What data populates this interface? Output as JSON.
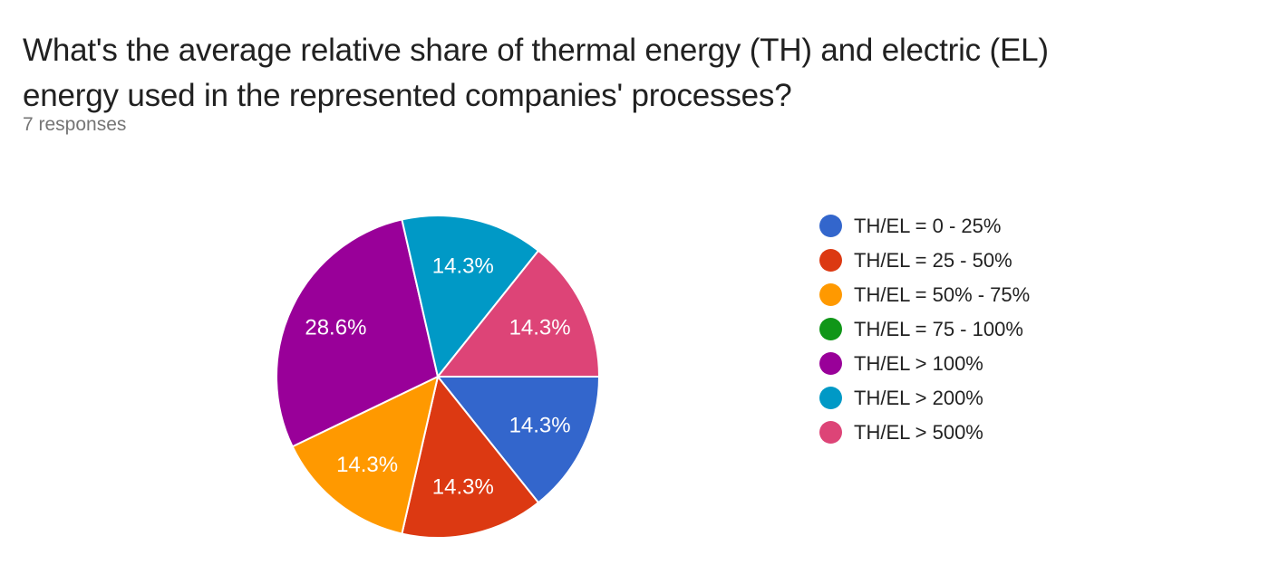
{
  "header": {
    "title": "What's the average relative share of thermal energy (TH) and electric (EL) energy used in the represented companies' processes?",
    "title_lines": [
      "What's the average relative share of thermal energy (TH) and electric (EL)",
      "energy used in the represented companies' processes?"
    ],
    "responses_label": "7 responses"
  },
  "colors": {
    "title_text": "#212121",
    "subtitle_text": "#757575",
    "legend_text": "#222222",
    "slice_label_text": "#ffffff",
    "slice_separator": "#ffffff",
    "background": "#ffffff"
  },
  "chart_data": {
    "type": "pie",
    "title": "What's the average relative share of thermal energy (TH) and electric (EL) energy used in the represented companies' processes?",
    "subtitle": "7 responses",
    "total_responses": 7,
    "legend_position": "right",
    "start_angle_deg": 0,
    "direction": "clockwise",
    "slices": [
      {
        "label": "TH/EL = 0 - 25%",
        "value": 1,
        "percent": 14.3,
        "percent_label": "14.3%",
        "color": "#3366CC"
      },
      {
        "label": "TH/EL = 25 - 50%",
        "value": 1,
        "percent": 14.3,
        "percent_label": "14.3%",
        "color": "#DC3912"
      },
      {
        "label": "TH/EL = 50% - 75%",
        "value": 1,
        "percent": 14.3,
        "percent_label": "14.3%",
        "color": "#FF9900"
      },
      {
        "label": "TH/EL = 75 - 100%",
        "value": 0,
        "percent": 0,
        "percent_label": "",
        "color": "#109618"
      },
      {
        "label": "TH/EL > 100%",
        "value": 2,
        "percent": 28.6,
        "percent_label": "28.6%",
        "color": "#990099"
      },
      {
        "label": "TH/EL > 200%",
        "value": 1,
        "percent": 14.3,
        "percent_label": "14.3%",
        "color": "#0099C6"
      },
      {
        "label": "TH/EL > 500%",
        "value": 1,
        "percent": 14.3,
        "percent_label": "14.3%",
        "color": "#DD4477"
      }
    ]
  }
}
